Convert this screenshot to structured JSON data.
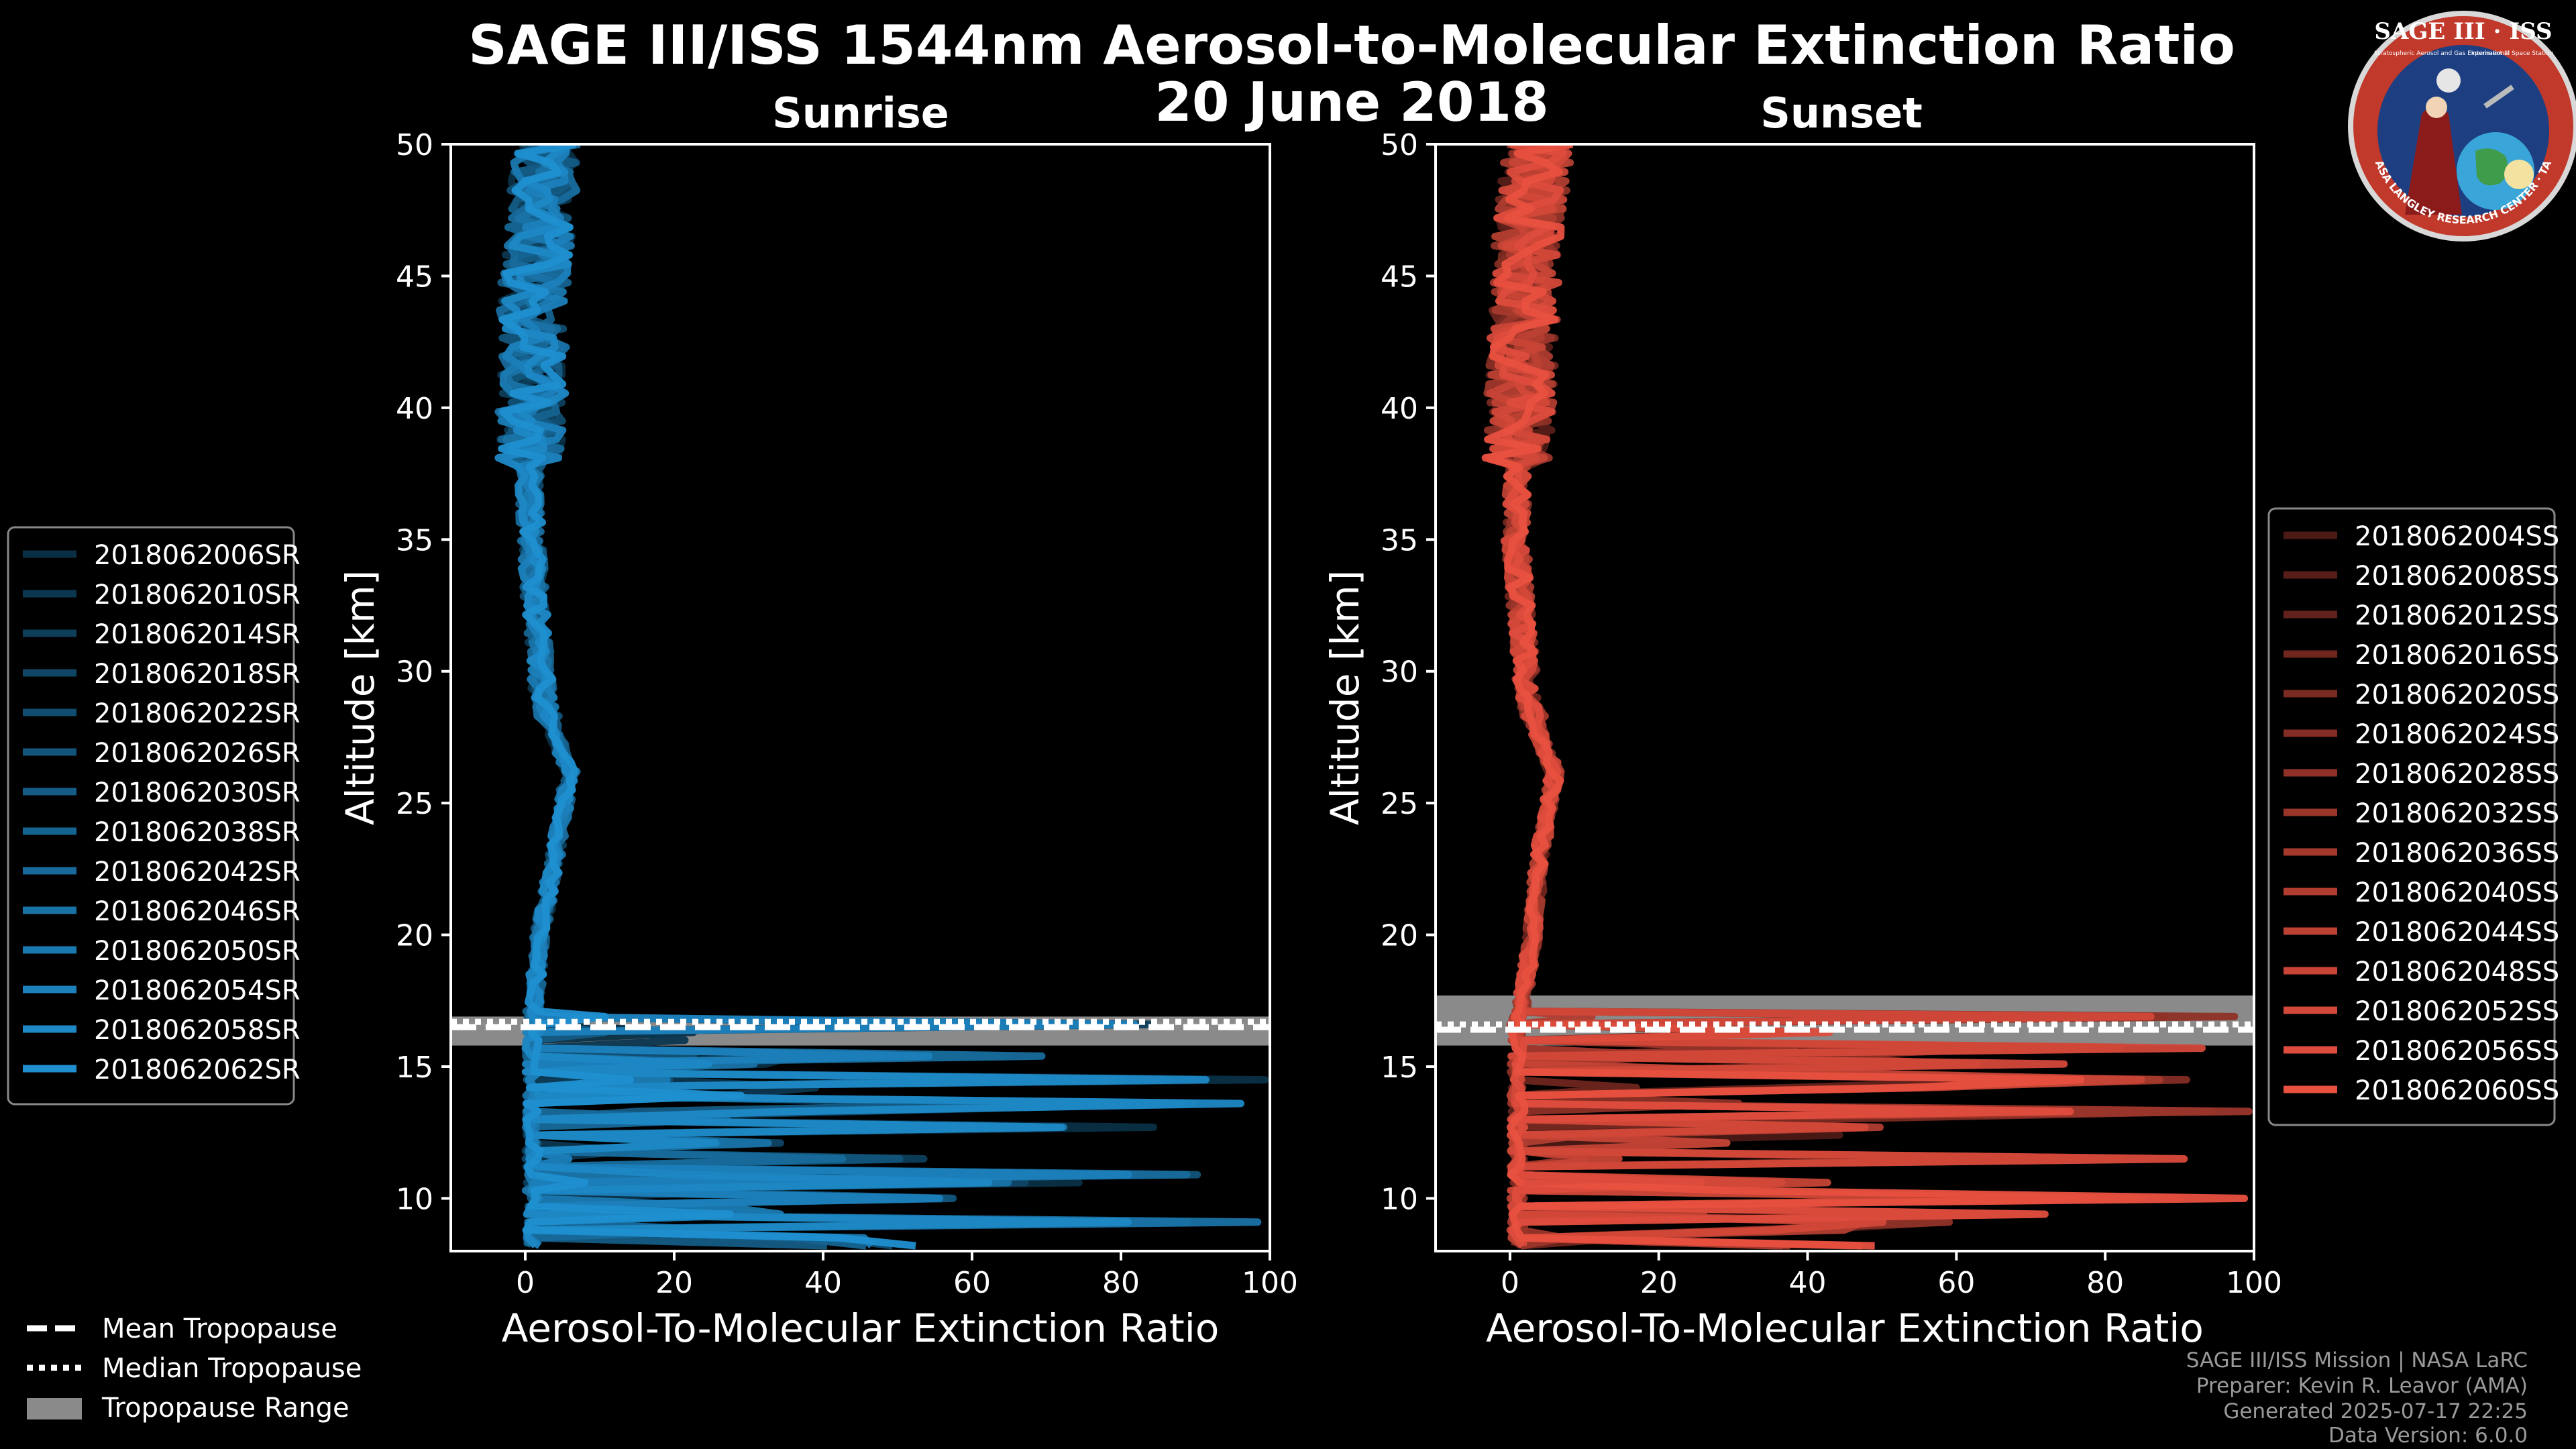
{
  "title_line1": "SAGE III/ISS 1544nm Aerosol-to-Molecular Extinction Ratio",
  "title_line2": "20 June 2018",
  "logo": {
    "text_top": "SAGE III · ISS",
    "text_small1": "Stratospheric Aerosol and Gas Experiment III",
    "text_small2": "International Space Station",
    "text_ring": "BALL · NASA LANGLEY RESEARCH CENTER · TAS-I · ESA"
  },
  "credits": {
    "line1": "SAGE III/ISS Mission | NASA LaRC",
    "line2": "Preparer: Kevin R. Leavor (AMA)",
    "line3": "Generated 2025-07-17 22:25",
    "line4": "Data Version: 6.0.0"
  },
  "tropo_legend": {
    "mean": "Mean Tropopause",
    "median": "Median Tropopause",
    "range": "Tropopause Range"
  },
  "colors": {
    "sunrise": "#1f8fd0",
    "sunset": "#e8503f",
    "tropo_range": "#8a8a8a",
    "background": "#000000"
  },
  "chart_data": [
    {
      "type": "line",
      "title": "Sunrise",
      "xlabel": "Aerosol-To-Molecular Extinction Ratio",
      "ylabel": "Altitude [km]",
      "xlim": [
        -10,
        100
      ],
      "ylim": [
        8,
        50
      ],
      "xticks": [
        0,
        20,
        40,
        60,
        80,
        100
      ],
      "yticks": [
        10,
        15,
        20,
        25,
        30,
        35,
        40,
        45,
        50
      ],
      "legend_loc": "left",
      "tropopause": {
        "mean": 16.5,
        "median": 16.7,
        "range": [
          15.8,
          16.9
        ]
      },
      "series": [
        {
          "name": "2018062006SR"
        },
        {
          "name": "2018062010SR"
        },
        {
          "name": "2018062014SR"
        },
        {
          "name": "2018062018SR"
        },
        {
          "name": "2018062022SR"
        },
        {
          "name": "2018062026SR"
        },
        {
          "name": "2018062030SR"
        },
        {
          "name": "2018062038SR"
        },
        {
          "name": "2018062042SR"
        },
        {
          "name": "2018062046SR"
        },
        {
          "name": "2018062050SR"
        },
        {
          "name": "2018062054SR"
        },
        {
          "name": "2018062058SR"
        },
        {
          "name": "2018062062SR"
        }
      ],
      "profile_backbone": [
        [
          0.0,
          8
        ],
        [
          0.5,
          10
        ],
        [
          0.8,
          14
        ],
        [
          1.0,
          17
        ],
        [
          2.0,
          20
        ],
        [
          4.0,
          23
        ],
        [
          6.0,
          26.2
        ],
        [
          4.0,
          27.5
        ],
        [
          2.5,
          29
        ],
        [
          1.5,
          32
        ],
        [
          0.8,
          35
        ],
        [
          0.5,
          38
        ],
        [
          1.0,
          41
        ],
        [
          1.0,
          44
        ],
        [
          2.0,
          47
        ],
        [
          3.0,
          50
        ]
      ],
      "lower_excursions": [
        [
          85,
          16.6
        ],
        [
          70,
          15.4
        ],
        [
          33,
          15.0
        ],
        [
          20,
          14.6
        ],
        [
          100,
          14.4
        ],
        [
          30,
          14.0
        ],
        [
          100,
          13.5
        ],
        [
          45,
          13.2
        ],
        [
          87,
          12.6
        ],
        [
          35,
          12.0
        ],
        [
          60,
          11.5
        ],
        [
          100,
          10.9
        ],
        [
          80,
          10.5
        ],
        [
          58,
          10.0
        ],
        [
          35,
          9.5
        ],
        [
          100,
          9.0
        ],
        [
          50,
          8.6
        ],
        [
          55,
          8.3
        ]
      ]
    },
    {
      "type": "line",
      "title": "Sunset",
      "xlabel": "Aerosol-To-Molecular Extinction Ratio",
      "ylabel": "Altitude [km]",
      "xlim": [
        -10,
        100
      ],
      "ylim": [
        8,
        50
      ],
      "xticks": [
        0,
        20,
        40,
        60,
        80,
        100
      ],
      "yticks": [
        10,
        15,
        20,
        25,
        30,
        35,
        40,
        45,
        50
      ],
      "legend_loc": "right",
      "tropopause": {
        "mean": 16.4,
        "median": 16.6,
        "range": [
          15.8,
          17.7
        ]
      },
      "series": [
        {
          "name": "2018062004SS"
        },
        {
          "name": "2018062008SS"
        },
        {
          "name": "2018062012SS"
        },
        {
          "name": "2018062016SS"
        },
        {
          "name": "2018062020SS"
        },
        {
          "name": "2018062024SS"
        },
        {
          "name": "2018062028SS"
        },
        {
          "name": "2018062032SS"
        },
        {
          "name": "2018062036SS"
        },
        {
          "name": "2018062040SS"
        },
        {
          "name": "2018062044SS"
        },
        {
          "name": "2018062048SS"
        },
        {
          "name": "2018062052SS"
        },
        {
          "name": "2018062056SS"
        },
        {
          "name": "2018062060SS"
        }
      ],
      "profile_backbone": [
        [
          0.5,
          8
        ],
        [
          1.0,
          10
        ],
        [
          1.5,
          14
        ],
        [
          1.5,
          17
        ],
        [
          3.0,
          20
        ],
        [
          4.0,
          23
        ],
        [
          6.0,
          26.2
        ],
        [
          4.0,
          27.5
        ],
        [
          2.5,
          29
        ],
        [
          1.5,
          32
        ],
        [
          0.8,
          35
        ],
        [
          1.0,
          38
        ],
        [
          1.5,
          41
        ],
        [
          2.0,
          44
        ],
        [
          2.5,
          47
        ],
        [
          4.0,
          50
        ]
      ],
      "lower_excursions": [
        [
          100,
          16.8
        ],
        [
          95,
          15.6
        ],
        [
          80,
          15.0
        ],
        [
          100,
          14.5
        ],
        [
          65,
          14.2
        ],
        [
          100,
          13.4
        ],
        [
          50,
          12.6
        ],
        [
          100,
          11.4
        ],
        [
          37,
          10.5
        ],
        [
          100,
          10.0
        ],
        [
          80,
          9.5
        ],
        [
          62,
          9.0
        ],
        [
          45,
          8.7
        ],
        [
          50,
          8.2
        ]
      ]
    }
  ]
}
